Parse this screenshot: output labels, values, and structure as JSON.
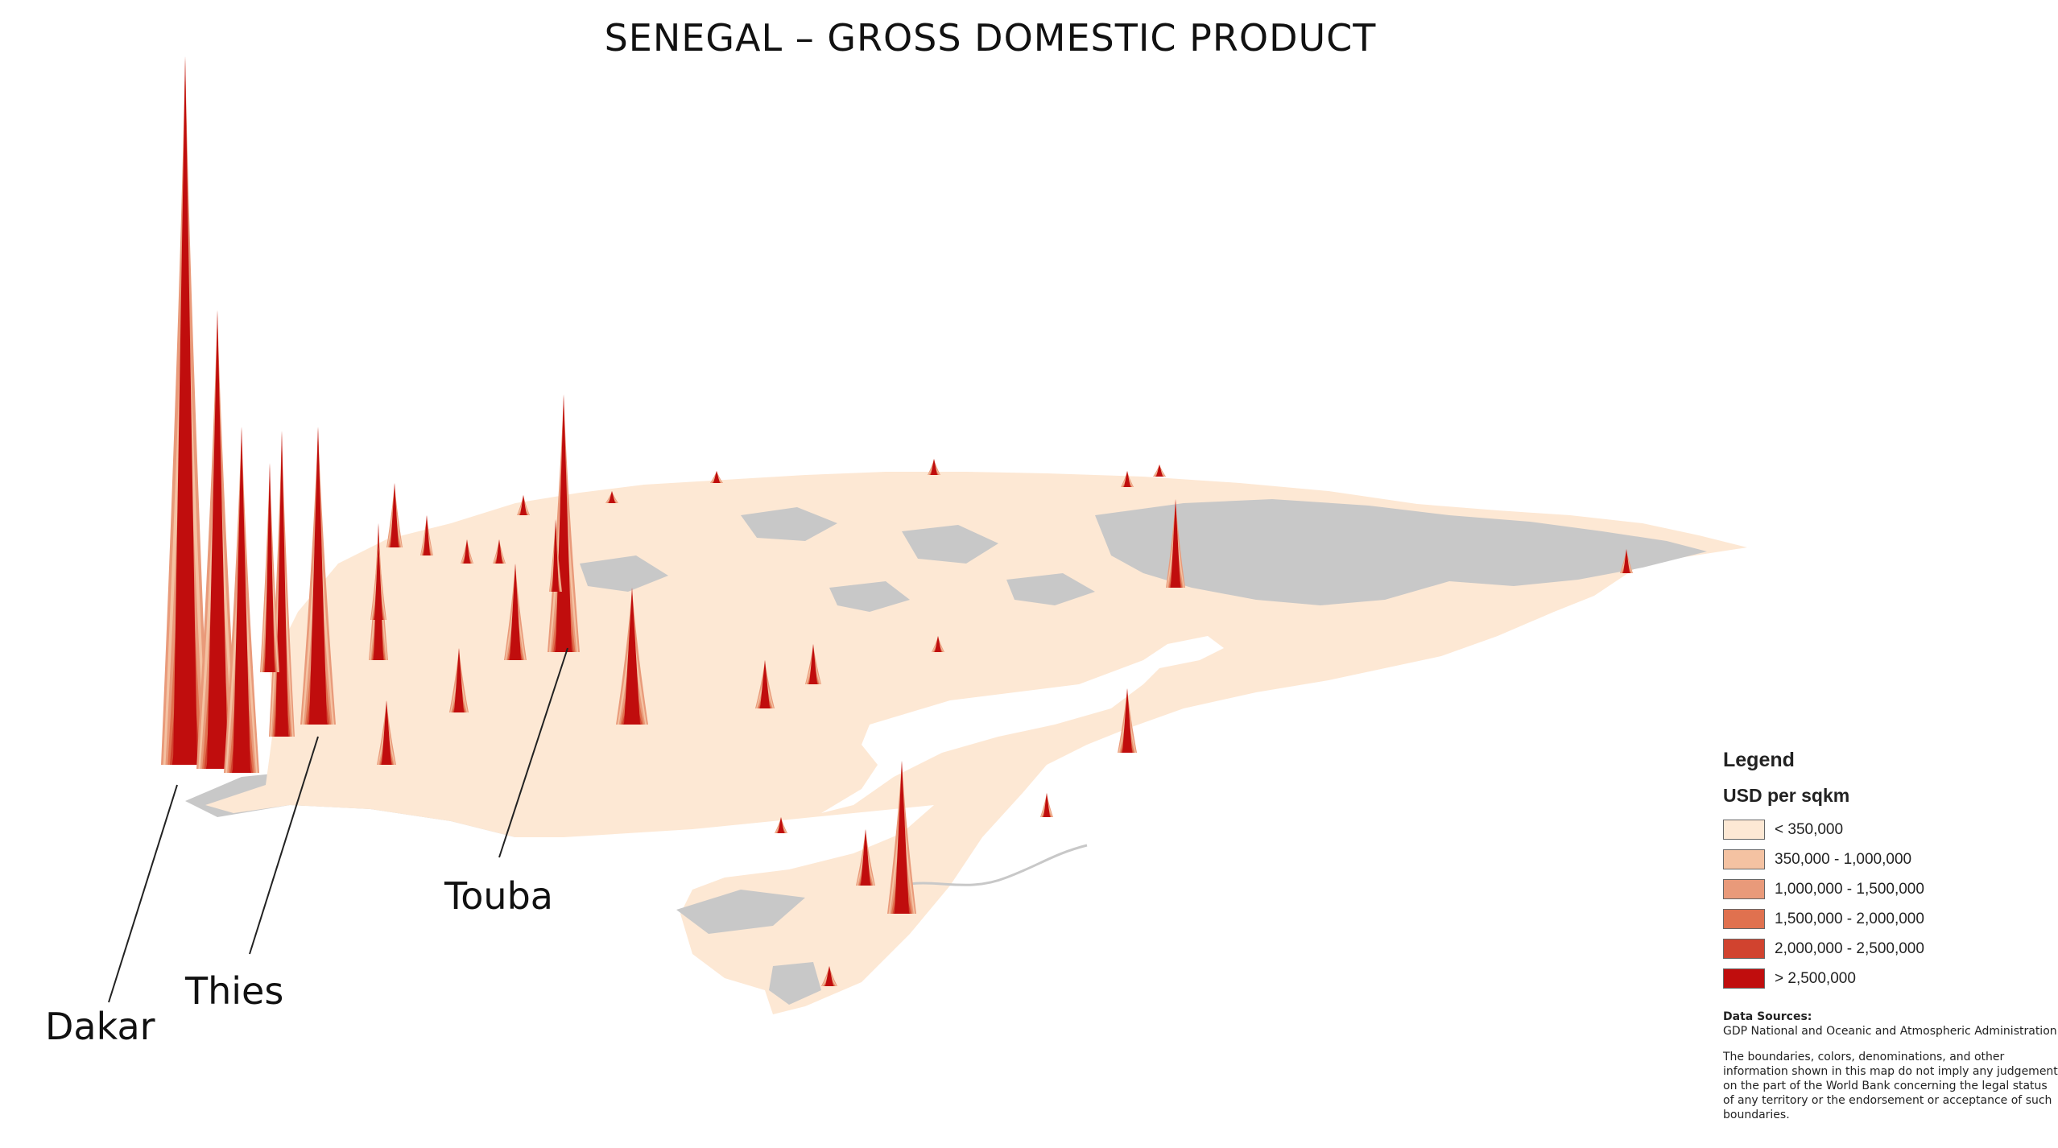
{
  "title": "SENEGAL – GROSS DOMESTIC PRODUCT",
  "cities": [
    {
      "name": "Dakar"
    },
    {
      "name": "Thies"
    },
    {
      "name": "Touba"
    }
  ],
  "legend": {
    "title": "Legend",
    "subtitle": "USD per sqkm",
    "items": [
      {
        "label": "< 350,000",
        "color": "#fde8d4"
      },
      {
        "label": "350,000 - 1,000,000",
        "color": "#f4c2a2"
      },
      {
        "label": "1,000,000 - 1,500,000",
        "color": "#e99a7a"
      },
      {
        "label": "1,500,000 - 2,000,000",
        "color": "#e0714f"
      },
      {
        "label": "2,000,000 - 2,500,000",
        "color": "#d1432f"
      },
      {
        "label": "> 2,500,000",
        "color": "#c00d0d"
      }
    ]
  },
  "data_sources": {
    "heading": "Data Sources:",
    "line": "GDP National and Oceanic and Atmospheric Administration"
  },
  "disclaimer_lines": [
    "The boundaries, colors, denominations, and other",
    "information shown in this map do not imply any judgement",
    "on the part of the World Bank concerning the legal status",
    "of any territory or the endorsement or acceptance of such",
    "boundaries."
  ],
  "colors": {
    "land": "#fde8d4",
    "no_data": "#c8c8c8",
    "peak": "#c00d0d"
  }
}
